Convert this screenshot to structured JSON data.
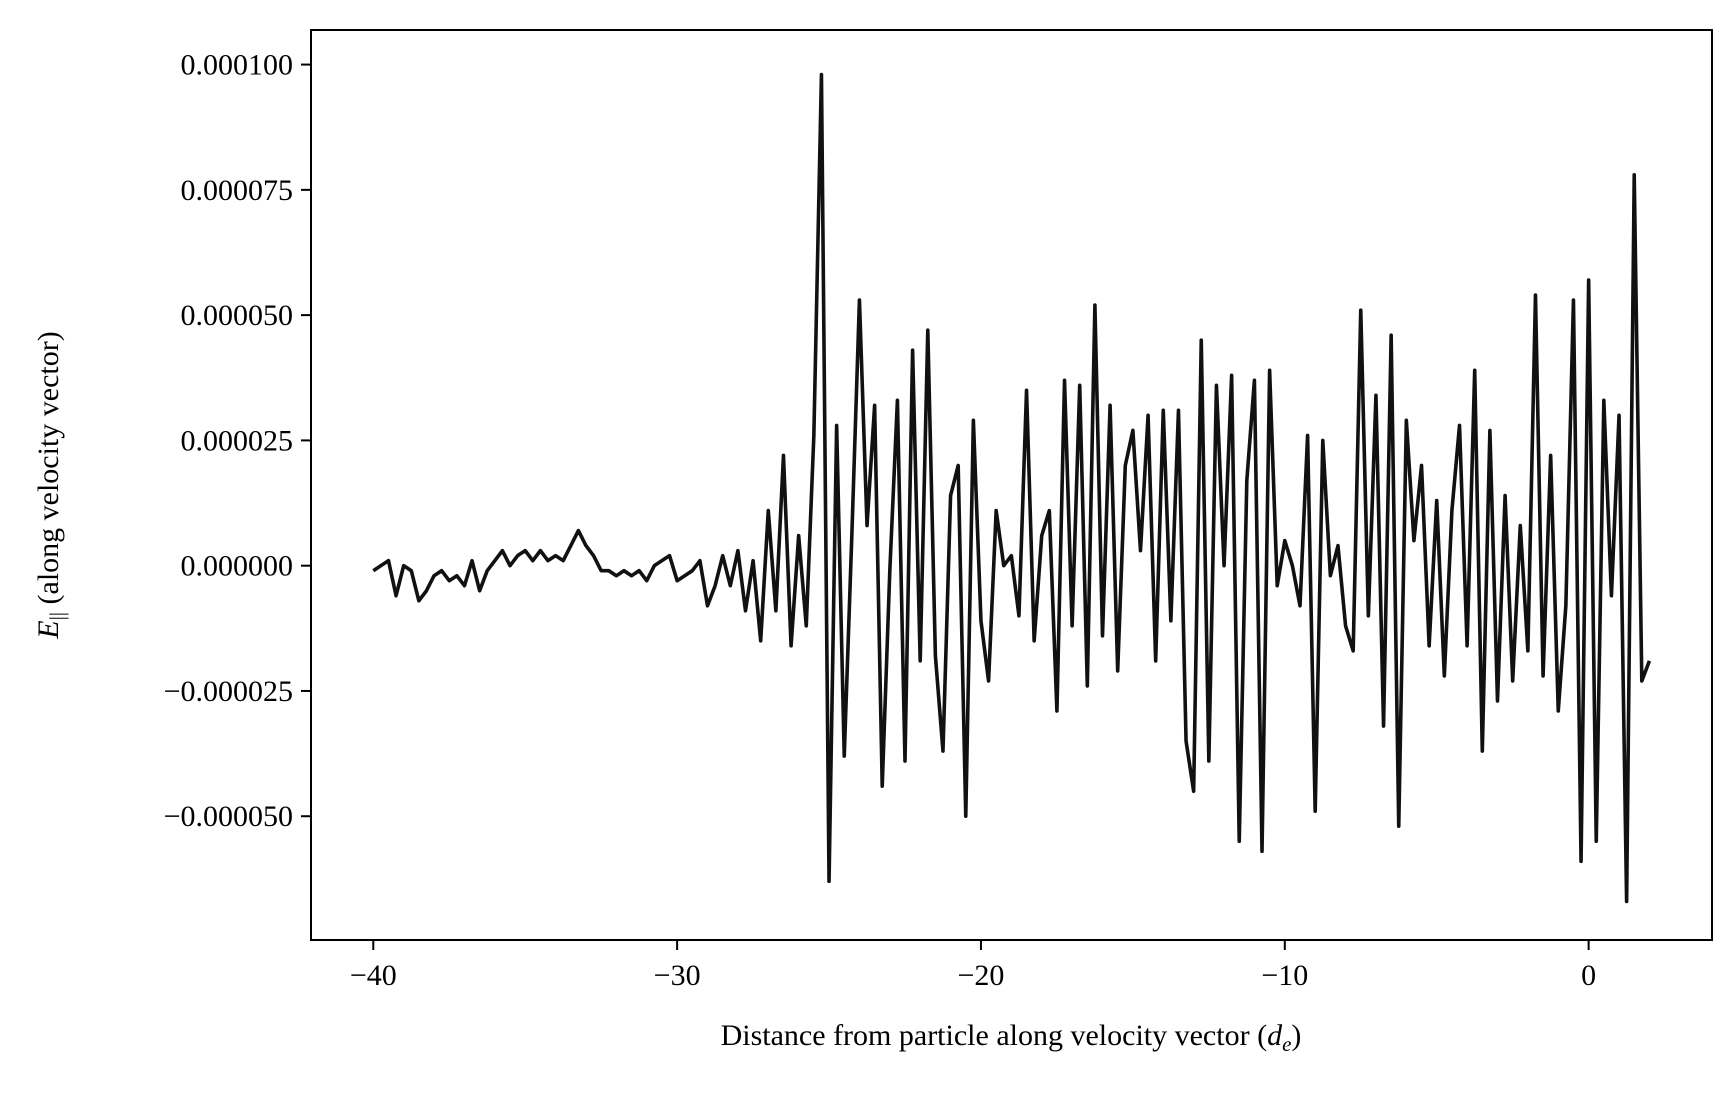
{
  "chart_data": {
    "type": "line",
    "xlabel": {
      "text": "Distance from particle along velocity vector (",
      "symbol": "d",
      "subscript": "e",
      "close": ")"
    },
    "ylabel": {
      "symbol": "E",
      "subscript": "||",
      "text": " (along velocity vector)"
    },
    "xlim": [
      -42.05,
      4.06
    ],
    "ylim": [
      -7.47e-05,
      0.0001069
    ],
    "xticks": [
      {
        "value": -40,
        "label": "−40"
      },
      {
        "value": -30,
        "label": "−30"
      },
      {
        "value": -20,
        "label": "−20"
      },
      {
        "value": -10,
        "label": "−10"
      },
      0
    ],
    "yticks": [
      {
        "value": -5e-05,
        "label": "−0.000050"
      },
      {
        "value": -2.5e-05,
        "label": "−0.000025"
      },
      {
        "value": 0,
        "label": "0.000000"
      },
      {
        "value": 2.5e-05,
        "label": "0.000025"
      },
      {
        "value": 5e-05,
        "label": "0.000050"
      },
      {
        "value": 7.5e-05,
        "label": "0.000075"
      },
      {
        "value": 0.0001,
        "label": "0.000100"
      }
    ],
    "color": "#111111",
    "grid": false,
    "x": [
      -40,
      -39.75,
      -39.5,
      -39.25,
      -39,
      -38.75,
      -38.5,
      -38.25,
      -38,
      -37.75,
      -37.5,
      -37.25,
      -37,
      -36.75,
      -36.5,
      -36.25,
      -36,
      -35.75,
      -35.5,
      -35.25,
      -35,
      -34.75,
      -34.5,
      -34.25,
      -34,
      -33.75,
      -33.5,
      -33.25,
      -33,
      -32.75,
      -32.5,
      -32.25,
      -32,
      -31.75,
      -31.5,
      -31.25,
      -31,
      -30.75,
      -30.5,
      -30.25,
      -30,
      -29.75,
      -29.5,
      -29.25,
      -29,
      -28.75,
      -28.5,
      -28.25,
      -28,
      -27.75,
      -27.5,
      -27.25,
      -27,
      -26.75,
      -26.5,
      -26.25,
      -26,
      -25.75,
      -25.5,
      -25.25,
      -25,
      -24.75,
      -24.5,
      -24.25,
      -24,
      -23.75,
      -23.5,
      -23.25,
      -23,
      -22.75,
      -22.5,
      -22.25,
      -22,
      -21.75,
      -21.5,
      -21.25,
      -21,
      -20.75,
      -20.5,
      -20.25,
      -20,
      -19.75,
      -19.5,
      -19.25,
      -19,
      -18.75,
      -18.5,
      -18.25,
      -18,
      -17.75,
      -17.5,
      -17.25,
      -17,
      -16.75,
      -16.5,
      -16.25,
      -16,
      -15.75,
      -15.5,
      -15.25,
      -15,
      -14.75,
      -14.5,
      -14.25,
      -14,
      -13.75,
      -13.5,
      -13.25,
      -13,
      -12.75,
      -12.5,
      -12.25,
      -12,
      -11.75,
      -11.5,
      -11.25,
      -11,
      -10.75,
      -10.5,
      -10.25,
      -10,
      -9.75,
      -9.5,
      -9.25,
      -9,
      -8.75,
      -8.5,
      -8.25,
      -8,
      -7.75,
      -7.5,
      -7.25,
      -7,
      -6.75,
      -6.5,
      -6.25,
      -6,
      -5.75,
      -5.5,
      -5.25,
      -5,
      -4.75,
      -4.5,
      -4.25,
      -4,
      -3.75,
      -3.5,
      -3.25,
      -3,
      -2.75,
      -2.5,
      -2.25,
      -2,
      -1.75,
      -1.5,
      -1.25,
      -1,
      -0.75,
      -0.5,
      -0.25,
      0,
      0.25,
      0.5,
      0.75,
      1,
      1.25,
      1.5,
      1.75,
      2
    ],
    "values": [
      -1e-06,
      0,
      1e-06,
      -6e-06,
      0,
      -1e-06,
      -7e-06,
      -5e-06,
      -2e-06,
      -1e-06,
      -3e-06,
      -2e-06,
      -4e-06,
      1e-06,
      -5e-06,
      -1e-06,
      1e-06,
      3e-06,
      0,
      2e-06,
      3e-06,
      1e-06,
      3e-06,
      1e-06,
      2e-06,
      1e-06,
      4e-06,
      7e-06,
      4e-06,
      2e-06,
      -1e-06,
      -1e-06,
      -2e-06,
      -1e-06,
      -2e-06,
      -1e-06,
      -3e-06,
      0,
      1e-06,
      2e-06,
      -3e-06,
      -2e-06,
      -1e-06,
      1e-06,
      -8e-06,
      -4e-06,
      2e-06,
      -4e-06,
      3e-06,
      -9e-06,
      1e-06,
      -1.5e-05,
      1.1e-05,
      -9e-06,
      2.2e-05,
      -1.6e-05,
      6e-06,
      -1.2e-05,
      2.6e-05,
      9.8e-05,
      -6.3e-05,
      2.8e-05,
      -3.8e-05,
      6e-06,
      5.3e-05,
      8e-06,
      3.2e-05,
      -4.4e-05,
      -1e-06,
      3.3e-05,
      -3.9e-05,
      4.3e-05,
      -1.9e-05,
      4.7e-05,
      -1.8e-05,
      -3.7e-05,
      1.4e-05,
      2e-05,
      -5e-05,
      2.9e-05,
      -1.1e-05,
      -2.3e-05,
      1.1e-05,
      0,
      2e-06,
      -1e-05,
      3.5e-05,
      -1.5e-05,
      6e-06,
      1.1e-05,
      -2.9e-05,
      3.7e-05,
      -1.2e-05,
      3.6e-05,
      -2.4e-05,
      5.2e-05,
      -1.4e-05,
      3.2e-05,
      -2.1e-05,
      2e-05,
      2.7e-05,
      3e-06,
      3e-05,
      -1.9e-05,
      3.1e-05,
      -1.1e-05,
      3.1e-05,
      -3.5e-05,
      -4.5e-05,
      4.5e-05,
      -3.9e-05,
      3.6e-05,
      0,
      3.8e-05,
      -5.5e-05,
      1.7e-05,
      3.7e-05,
      -5.7e-05,
      3.9e-05,
      -4e-06,
      5e-06,
      0,
      -8e-06,
      2.6e-05,
      -4.9e-05,
      2.5e-05,
      -2e-06,
      4e-06,
      -1.2e-05,
      -1.7e-05,
      5.1e-05,
      -1e-05,
      3.4e-05,
      -3.2e-05,
      4.6e-05,
      -5.2e-05,
      2.9e-05,
      5e-06,
      2e-05,
      -1.6e-05,
      1.3e-05,
      -2.2e-05,
      1.1e-05,
      2.8e-05,
      -1.6e-05,
      3.9e-05,
      -3.7e-05,
      2.7e-05,
      -2.7e-05,
      1.4e-05,
      -2.3e-05,
      8e-06,
      -1.7e-05,
      5.4e-05,
      -2.2e-05,
      2.2e-05,
      -2.9e-05,
      -8e-06,
      5.3e-05,
      -5.9e-05,
      5.7e-05,
      -5.5e-05,
      3.3e-05,
      -6e-06,
      3e-05,
      -6.7e-05,
      7.8e-05,
      -2.3e-05,
      -1.9e-05
    ]
  }
}
